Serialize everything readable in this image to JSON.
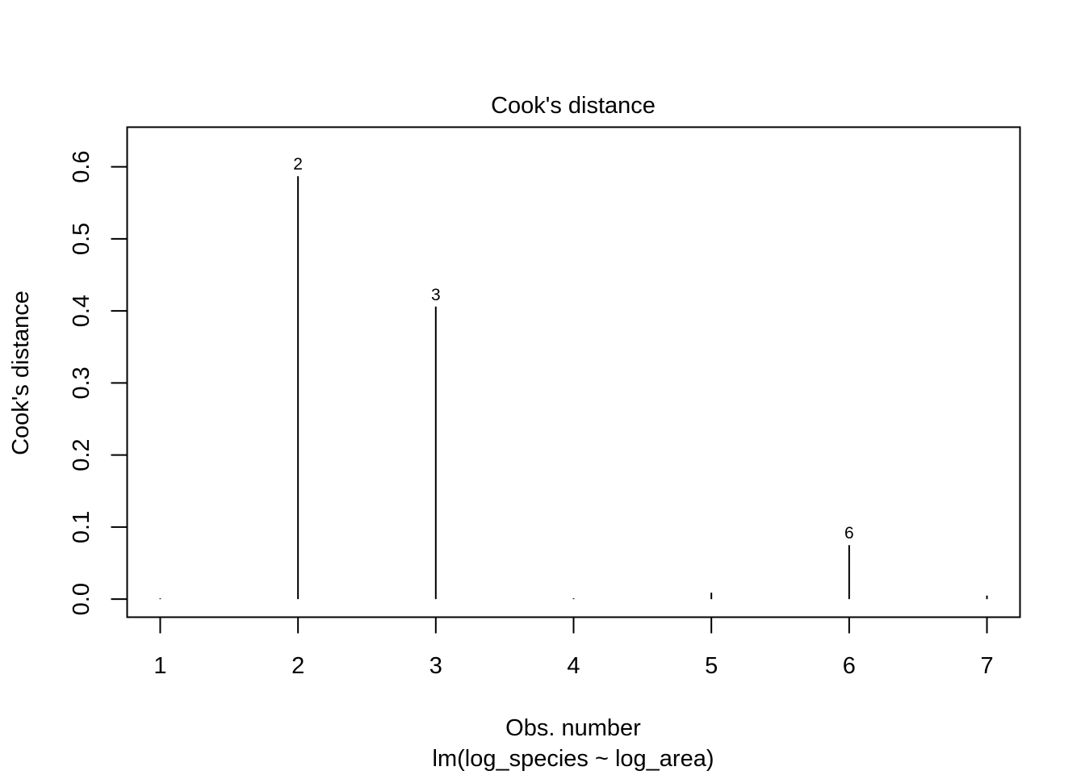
{
  "chart_data": {
    "type": "bar",
    "title": "Cook's distance",
    "xlabel": "Obs. number",
    "subtitle": "lm(log_species ~ log_area)",
    "ylabel": "Cook's distance",
    "x": [
      1,
      2,
      3,
      4,
      5,
      6,
      7
    ],
    "values": [
      0.0005,
      0.587,
      0.406,
      0.0004,
      0.009,
      0.075,
      0.005
    ],
    "xlim": [
      0.76,
      7.24
    ],
    "ylim": [
      -0.025,
      0.655
    ],
    "xticks": [
      1,
      2,
      3,
      4,
      5,
      6,
      7
    ],
    "yticks": [
      0.0,
      0.1,
      0.2,
      0.3,
      0.4,
      0.5,
      0.6
    ],
    "yticklabels": [
      "0.0",
      "0.1",
      "0.2",
      "0.3",
      "0.4",
      "0.5",
      "0.6"
    ],
    "point_labels": [
      {
        "obs": 2,
        "label": "2"
      },
      {
        "obs": 3,
        "label": "3"
      },
      {
        "obs": 6,
        "label": "6"
      }
    ],
    "grid": false,
    "line_color": "#000000"
  }
}
